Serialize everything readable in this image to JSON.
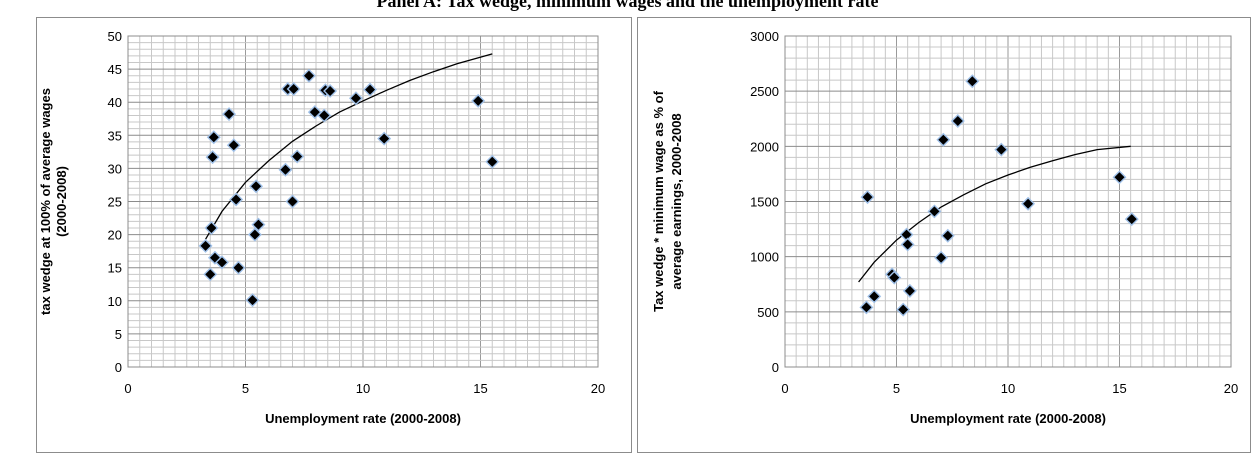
{
  "page_title": "Panel A: Tax wedge, minimum wages and the unemployment rate",
  "chart_data": [
    {
      "type": "scatter",
      "title": "",
      "xlabel": "Unemployment rate (2000-2008)",
      "ylabel_lines": [
        "tax wedge at 100% of average wages",
        "(2000-2008)"
      ],
      "xlim": [
        0,
        20
      ],
      "ylim": [
        0,
        50
      ],
      "x_ticks": [
        "0",
        "5",
        "10",
        "15",
        "20"
      ],
      "y_ticks": [
        "0",
        "5",
        "10",
        "15",
        "20",
        "25",
        "30",
        "35",
        "40",
        "45",
        "50"
      ],
      "grid": true,
      "trendline": "logarithmic",
      "trend_points": [
        [
          3.3,
          19.3
        ],
        [
          4,
          23.5
        ],
        [
          5,
          27.9
        ],
        [
          6,
          31.2
        ],
        [
          7,
          34.1
        ],
        [
          8,
          36.4
        ],
        [
          9,
          38.5
        ],
        [
          10,
          40.2
        ],
        [
          11,
          41.8
        ],
        [
          12,
          43.3
        ],
        [
          13,
          44.6
        ],
        [
          14,
          45.8
        ],
        [
          15.5,
          47.3
        ]
      ],
      "series": [
        {
          "points": [
            [
              3.3,
              18.3
            ],
            [
              3.5,
              14.0
            ],
            [
              3.55,
              21.0
            ],
            [
              3.6,
              31.7
            ],
            [
              3.65,
              34.7
            ],
            [
              3.7,
              16.5
            ],
            [
              4.0,
              15.8
            ],
            [
              4.3,
              38.2
            ],
            [
              4.5,
              33.5
            ],
            [
              4.6,
              25.3
            ],
            [
              4.7,
              15.0
            ],
            [
              5.3,
              10.1
            ],
            [
              5.4,
              20.0
            ],
            [
              5.45,
              27.3
            ],
            [
              5.55,
              21.5
            ],
            [
              6.7,
              29.8
            ],
            [
              6.8,
              42.0
            ],
            [
              7.0,
              25.0
            ],
            [
              7.05,
              42.0
            ],
            [
              7.2,
              31.8
            ],
            [
              7.7,
              44.0
            ],
            [
              7.95,
              38.5
            ],
            [
              8.35,
              38.0
            ],
            [
              8.4,
              41.8
            ],
            [
              8.6,
              41.7
            ],
            [
              9.7,
              40.6
            ],
            [
              10.3,
              41.9
            ],
            [
              10.9,
              34.5
            ],
            [
              14.9,
              40.2
            ],
            [
              15.5,
              31.0
            ]
          ]
        }
      ]
    },
    {
      "type": "scatter",
      "title": "",
      "xlabel": "Unemployment rate (2000-2008)",
      "ylabel_lines": [
        "Tax wedge * minimum wage as % of",
        "average earnings, 2000-2008"
      ],
      "xlim": [
        0,
        20
      ],
      "ylim": [
        0,
        3000
      ],
      "x_ticks": [
        "0",
        "5",
        "10",
        "15",
        "20"
      ],
      "y_ticks": [
        "0",
        "500",
        "1000",
        "1500",
        "2000",
        "2500",
        "3000"
      ],
      "grid": true,
      "trendline": "logarithmic",
      "trend_points": [
        [
          3.3,
          770
        ],
        [
          4,
          950
        ],
        [
          5,
          1150
        ],
        [
          6,
          1310
        ],
        [
          7,
          1450
        ],
        [
          8,
          1560
        ],
        [
          9,
          1660
        ],
        [
          10,
          1740
        ],
        [
          11,
          1810
        ],
        [
          12,
          1870
        ],
        [
          13,
          1925
        ],
        [
          14,
          1970
        ],
        [
          15.5,
          2000
        ]
      ],
      "series": [
        {
          "points": [
            [
              3.65,
              540
            ],
            [
              3.7,
              1540
            ],
            [
              4.0,
              640
            ],
            [
              4.8,
              840
            ],
            [
              4.9,
              810
            ],
            [
              5.3,
              520
            ],
            [
              5.45,
              1200
            ],
            [
              5.5,
              1110
            ],
            [
              5.6,
              690
            ],
            [
              6.7,
              1410
            ],
            [
              7.0,
              990
            ],
            [
              7.1,
              2060
            ],
            [
              7.3,
              1190
            ],
            [
              7.75,
              2230
            ],
            [
              8.4,
              2590
            ],
            [
              9.7,
              1970
            ],
            [
              10.9,
              1480
            ],
            [
              15.0,
              1720
            ],
            [
              15.55,
              1340
            ]
          ]
        }
      ]
    }
  ]
}
